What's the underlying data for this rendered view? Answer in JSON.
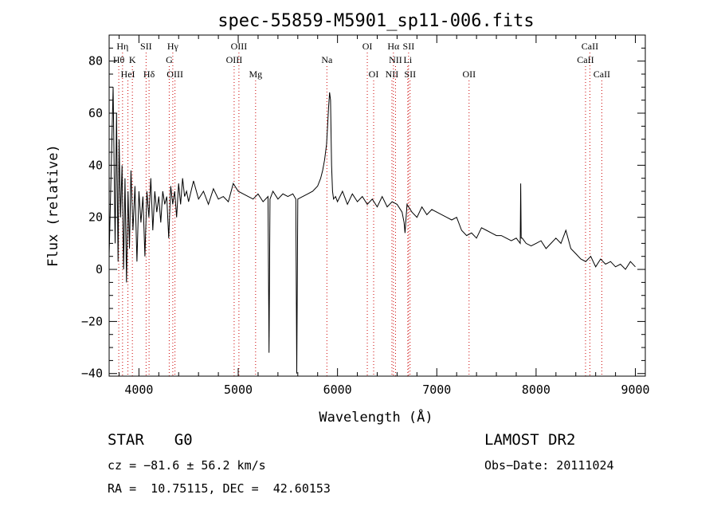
{
  "chart_data": {
    "type": "line",
    "title": "spec-55859-M5901_sp11-006.fits",
    "xlabel": "Wavelength (Å)",
    "ylabel": "Flux (relative)",
    "xlim": [
      3700,
      9100
    ],
    "ylim": [
      -41,
      90
    ],
    "xticks": [
      4000,
      5000,
      6000,
      7000,
      8000,
      9000
    ],
    "yticks": [
      -40,
      -20,
      0,
      20,
      40,
      60,
      80
    ],
    "grid": false,
    "line_color": "#000000",
    "marker_color": "#cc0000",
    "series": [
      {
        "x": [
          3700,
          3740,
          3760,
          3775,
          3790,
          3800,
          3815,
          3830,
          3845,
          3860,
          3875,
          3890,
          3905,
          3920,
          3940,
          3960,
          3980,
          4000,
          4020,
          4040,
          4060,
          4080,
          4100,
          4120,
          4140,
          4160,
          4180,
          4200,
          4220,
          4240,
          4260,
          4280,
          4300,
          4320,
          4340,
          4360,
          4380,
          4400,
          4420,
          4440,
          4460,
          4480,
          4500,
          4550,
          4600,
          4650,
          4700,
          4750,
          4800,
          4850,
          4900,
          4950,
          5000,
          5050,
          5100,
          5150,
          5200,
          5250,
          5300,
          5310,
          5320,
          5350,
          5400,
          5450,
          5500,
          5550,
          5580,
          5590,
          5600,
          5650,
          5700,
          5750,
          5800,
          5830,
          5850,
          5870,
          5890,
          5900,
          5910,
          5920,
          5930,
          5940,
          5950,
          5960,
          5980,
          6000,
          6050,
          6100,
          6150,
          6200,
          6250,
          6300,
          6350,
          6400,
          6450,
          6500,
          6550,
          6600,
          6650,
          6670,
          6680,
          6700,
          6750,
          6800,
          6850,
          6900,
          6950,
          7000,
          7050,
          7100,
          7150,
          7200,
          7250,
          7300,
          7350,
          7400,
          7450,
          7500,
          7550,
          7600,
          7650,
          7700,
          7750,
          7800,
          7840,
          7845,
          7850,
          7860,
          7900,
          7950,
          8000,
          8050,
          8100,
          8150,
          8200,
          8250,
          8300,
          8350,
          8400,
          8450,
          8500,
          8550,
          8600,
          8650,
          8700,
          8750,
          8800,
          8850,
          8900,
          8950,
          9000
        ],
        "values": [
          5,
          70,
          10,
          60,
          3,
          50,
          20,
          40,
          0,
          35,
          -5,
          30,
          8,
          38,
          15,
          32,
          3,
          30,
          18,
          28,
          5,
          30,
          20,
          35,
          15,
          30,
          22,
          28,
          18,
          30,
          25,
          28,
          12,
          32,
          25,
          30,
          20,
          33,
          25,
          35,
          28,
          30,
          26,
          34,
          27,
          30,
          25,
          31,
          27,
          28,
          26,
          33,
          30,
          29,
          28,
          27,
          29,
          26,
          28,
          -32,
          27,
          30,
          27,
          29,
          28,
          29,
          27,
          -40,
          27,
          28,
          29,
          30,
          32,
          35,
          38,
          42,
          48,
          55,
          62,
          68,
          65,
          40,
          30,
          27,
          28,
          26,
          30,
          25,
          29,
          26,
          28,
          25,
          27,
          24,
          28,
          24,
          26,
          25,
          22,
          18,
          14,
          25,
          22,
          20,
          24,
          21,
          23,
          22,
          21,
          20,
          19,
          20,
          15,
          13,
          14,
          12,
          16,
          15,
          14,
          13,
          13,
          12,
          11,
          12,
          10,
          33,
          12,
          12,
          10,
          9,
          10,
          11,
          8,
          10,
          12,
          10,
          15,
          8,
          6,
          4,
          3,
          5,
          1,
          4,
          2,
          3,
          1,
          2,
          0,
          3,
          1
        ]
      }
    ],
    "markers": [
      {
        "label": "Hη",
        "wavelength": 3835,
        "row": 1
      },
      {
        "label": "Hθ",
        "wavelength": 3797,
        "row": 2
      },
      {
        "label": "K",
        "wavelength": 3934,
        "row": 2
      },
      {
        "label": "HeI",
        "wavelength": 3889,
        "row": 3
      },
      {
        "label": "SII",
        "wavelength": 4072,
        "row": 1
      },
      {
        "label": "Hδ",
        "wavelength": 4102,
        "row": 3
      },
      {
        "label": "Hγ",
        "wavelength": 4341,
        "row": 1
      },
      {
        "label": "G",
        "wavelength": 4305,
        "row": 2
      },
      {
        "label": "OIII",
        "wavelength": 4363,
        "row": 3
      },
      {
        "label": "OIII",
        "wavelength": 5007,
        "row": 1
      },
      {
        "label": "OIII",
        "wavelength": 4959,
        "row": 2
      },
      {
        "label": "Mg",
        "wavelength": 5175,
        "row": 3
      },
      {
        "label": "Na",
        "wavelength": 5893,
        "row": 2
      },
      {
        "label": "OI",
        "wavelength": 6300,
        "row": 1
      },
      {
        "label": "OI",
        "wavelength": 6364,
        "row": 3
      },
      {
        "label": "Hα",
        "wavelength": 6563,
        "row": 1
      },
      {
        "label": "SII",
        "wavelength": 6716,
        "row": 1
      },
      {
        "label": "NII",
        "wavelength": 6584,
        "row": 2
      },
      {
        "label": "Li",
        "wavelength": 6708,
        "row": 2
      },
      {
        "label": "NII",
        "wavelength": 6548,
        "row": 3
      },
      {
        "label": "SII",
        "wavelength": 6731,
        "row": 3
      },
      {
        "label": "OII",
        "wavelength": 7325,
        "row": 3
      },
      {
        "label": "CaII",
        "wavelength": 8542,
        "row": 1
      },
      {
        "label": "CaII",
        "wavelength": 8498,
        "row": 2
      },
      {
        "label": "CaII",
        "wavelength": 8662,
        "row": 3
      }
    ],
    "marker_rows": {
      "1": "top",
      "2": "middle",
      "3": "bottom"
    }
  },
  "info": {
    "class_label": "STAR",
    "subclass": "G0",
    "survey": "LAMOST DR2",
    "redshift": "cz = −81.6 ± 56.2 km/s",
    "obs_date": "Obs−Date: 20111024",
    "coords": "RA =  10.75115, DEC =  42.60153"
  }
}
